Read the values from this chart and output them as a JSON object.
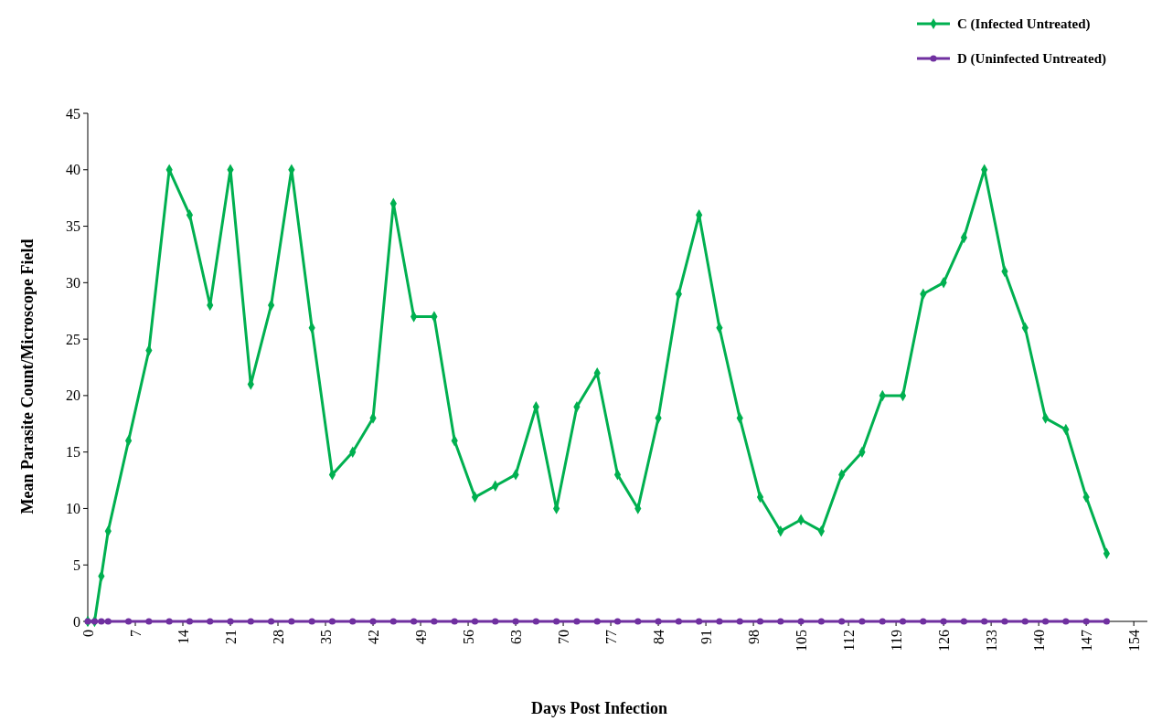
{
  "chart_data": {
    "type": "line",
    "xlabel": "Days Post Infection",
    "ylabel": "Mean Parasite Count/Microscope Field",
    "x": [
      0,
      1,
      2,
      3,
      6,
      9,
      12,
      15,
      18,
      21,
      24,
      27,
      30,
      33,
      36,
      39,
      42,
      45,
      48,
      51,
      54,
      57,
      60,
      63,
      66,
      69,
      72,
      75,
      78,
      81,
      84,
      87,
      90,
      93,
      96,
      99,
      102,
      105,
      108,
      111,
      114,
      117,
      120,
      123,
      126,
      129,
      132,
      135,
      138,
      141,
      144,
      147,
      150
    ],
    "series": [
      {
        "name": "C (Infected Untreated)",
        "color": "#00b050",
        "marker": "diamond",
        "values": [
          0,
          0,
          4,
          8,
          16,
          24,
          40,
          36,
          28,
          40,
          21,
          28,
          40,
          26,
          13,
          15,
          18,
          37,
          27,
          27,
          16,
          11,
          12,
          13,
          19,
          10,
          19,
          22,
          13,
          10,
          18,
          29,
          36,
          26,
          18,
          11,
          8,
          9,
          8,
          13,
          15,
          20,
          20,
          29,
          30,
          34,
          40,
          31,
          26,
          18,
          17,
          11,
          6
        ]
      },
      {
        "name": "D (Uninfected Untreated)",
        "color": "#7030a0",
        "marker": "circle",
        "values": [
          0,
          0,
          0,
          0,
          0,
          0,
          0,
          0,
          0,
          0,
          0,
          0,
          0,
          0,
          0,
          0,
          0,
          0,
          0,
          0,
          0,
          0,
          0,
          0,
          0,
          0,
          0,
          0,
          0,
          0,
          0,
          0,
          0,
          0,
          0,
          0,
          0,
          0,
          0,
          0,
          0,
          0,
          0,
          0,
          0,
          0,
          0,
          0,
          0,
          0,
          0,
          0,
          0
        ]
      }
    ],
    "xlim": [
      0,
      156
    ],
    "xticks": [
      0,
      7,
      14,
      21,
      28,
      35,
      42,
      49,
      56,
      63,
      70,
      77,
      84,
      91,
      98,
      105,
      112,
      119,
      126,
      133,
      140,
      147,
      154
    ],
    "ylim": [
      0,
      45
    ],
    "yticks": [
      0,
      5,
      10,
      15,
      20,
      25,
      30,
      35,
      40,
      45
    ],
    "grid": false,
    "legend": "top right",
    "line_style": "solid"
  }
}
